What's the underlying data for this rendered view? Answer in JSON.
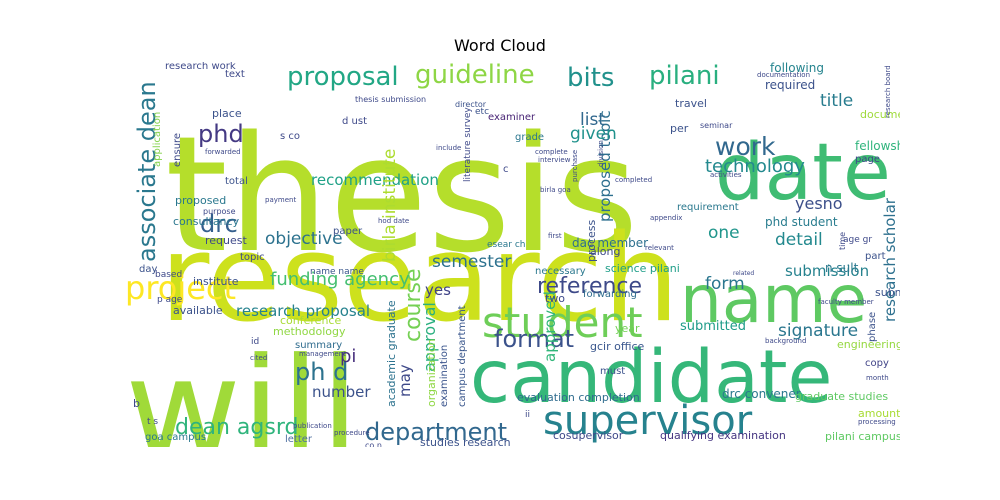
{
  "title": "Word Cloud",
  "words": [
    {
      "text": "thesis",
      "color": "#b5de2b"
    },
    {
      "text": "research",
      "color": "#cde11d"
    },
    {
      "text": "will",
      "color": "#a0da39"
    },
    {
      "text": "date",
      "color": "#3fbc73"
    },
    {
      "text": "name",
      "color": "#5ec962"
    },
    {
      "text": "candidate",
      "color": "#35b779"
    },
    {
      "text": "supervisor",
      "color": "#26828e"
    },
    {
      "text": "student",
      "color": "#6ece58"
    },
    {
      "text": "project",
      "color": "#fde725"
    },
    {
      "text": "proposal",
      "color": "#22a785"
    },
    {
      "text": "guideline",
      "color": "#8ed645"
    },
    {
      "text": "bits",
      "color": "#21918c"
    },
    {
      "text": "pilani",
      "color": "#29af7f"
    },
    {
      "text": "associate dean",
      "color": "#2a788e"
    },
    {
      "text": "phd",
      "color": "#443983"
    },
    {
      "text": "work",
      "color": "#31688e"
    },
    {
      "text": "drc",
      "color": "#355f8d"
    },
    {
      "text": "department",
      "color": "#31688e"
    },
    {
      "text": "dean agsrd",
      "color": "#2fb47c"
    },
    {
      "text": "reference",
      "color": "#3e4a89"
    },
    {
      "text": "format",
      "color": "#3b528b"
    },
    {
      "text": "course",
      "color": "#75d054"
    },
    {
      "text": "ph d",
      "color": "#2c728e"
    },
    {
      "text": "pi",
      "color": "#472f7d"
    },
    {
      "text": "technology",
      "color": "#23898e"
    },
    {
      "text": "funding agency",
      "color": "#44bf70"
    },
    {
      "text": "recommendation",
      "color": "#1fa187"
    },
    {
      "text": "objective",
      "color": "#2c728e"
    },
    {
      "text": "birla institute",
      "color": "#addc30"
    },
    {
      "text": "proposed topic",
      "color": "#2e6f8e"
    },
    {
      "text": "list",
      "color": "#31688e"
    },
    {
      "text": "given",
      "color": "#20928c"
    },
    {
      "text": "title",
      "color": "#287c8e"
    },
    {
      "text": "research scholar",
      "color": "#2d708e"
    },
    {
      "text": "submission",
      "color": "#26828e"
    },
    {
      "text": "signature",
      "color": "#2a768e"
    },
    {
      "text": "detail",
      "color": "#23898e"
    },
    {
      "text": "yesno",
      "color": "#3c4f8a"
    },
    {
      "text": "one",
      "color": "#1f958b"
    },
    {
      "text": "form",
      "color": "#2a768e"
    },
    {
      "text": "semester",
      "color": "#2c718e"
    },
    {
      "text": "approved",
      "color": "#32b67a"
    },
    {
      "text": "approval",
      "color": "#2ab07f"
    },
    {
      "text": "may",
      "color": "#3e4989"
    },
    {
      "text": "number",
      "color": "#3b528b"
    },
    {
      "text": "research proposal",
      "color": "#26828e"
    },
    {
      "text": "yes",
      "color": "#404387"
    },
    {
      "text": "submitted",
      "color": "#1e9c89"
    },
    {
      "text": "dac member",
      "color": "#2d708e"
    },
    {
      "text": "phd student",
      "color": "#287c8e"
    },
    {
      "text": "fellowship",
      "color": "#2fb47c"
    },
    {
      "text": "required",
      "color": "#3b528b"
    },
    {
      "text": "following",
      "color": "#25848e"
    },
    {
      "text": "drc convener",
      "color": "#2a788e"
    },
    {
      "text": "evaluation completion",
      "color": "#2f6c8e"
    },
    {
      "text": "cosupervisor",
      "color": "#3e4989"
    },
    {
      "text": "qualifying examination",
      "color": "#453581"
    },
    {
      "text": "pilani campus",
      "color": "#5ec962"
    },
    {
      "text": "graduate studies",
      "color": "#5ec962"
    },
    {
      "text": "engineering",
      "color": "#95d840"
    },
    {
      "text": "studies research",
      "color": "#3b528b"
    },
    {
      "text": "goa campus",
      "color": "#2a788e"
    },
    {
      "text": "letter",
      "color": "#4e6fa0"
    },
    {
      "text": "methodology",
      "color": "#90d743"
    },
    {
      "text": "conference",
      "color": "#a8db34"
    },
    {
      "text": "summary",
      "color": "#2f6c8e"
    },
    {
      "text": "academic graduate",
      "color": "#2c728e"
    },
    {
      "text": "organization",
      "color": "#8fd744"
    },
    {
      "text": "examination",
      "color": "#3a548c"
    },
    {
      "text": "campus department",
      "color": "#39568c"
    },
    {
      "text": "gcir office",
      "color": "#39568c"
    },
    {
      "text": "must",
      "color": "#3b528b"
    },
    {
      "text": "year",
      "color": "#73d056"
    },
    {
      "text": "two",
      "color": "#3e4a89"
    },
    {
      "text": "forwarding",
      "color": "#2f6c8e"
    },
    {
      "text": "science pilani",
      "color": "#1f9e89"
    },
    {
      "text": "necessary",
      "color": "#2a788e"
    },
    {
      "text": "process",
      "color": "#3b528b"
    },
    {
      "text": "along",
      "color": "#3e4a89"
    },
    {
      "text": "place",
      "color": "#3b528b"
    },
    {
      "text": "ensure",
      "color": "#3e4a89"
    },
    {
      "text": "grade",
      "color": "#2a768e"
    },
    {
      "text": "examiner",
      "color": "#482475"
    },
    {
      "text": "literature survey",
      "color": "#3e4989"
    },
    {
      "text": "application",
      "color": "#83d34b"
    },
    {
      "text": "consultancy",
      "color": "#2a768e"
    },
    {
      "text": "request",
      "color": "#3e4989"
    },
    {
      "text": "topic",
      "color": "#3e4989"
    },
    {
      "text": "proposed",
      "color": "#2a788e"
    },
    {
      "text": "institute",
      "color": "#3b528b"
    },
    {
      "text": "available",
      "color": "#3b528b"
    },
    {
      "text": "requirement",
      "color": "#2a788e"
    },
    {
      "text": "travel",
      "color": "#3b528b"
    },
    {
      "text": "document",
      "color": "#9fda3a"
    },
    {
      "text": "page",
      "color": "#3e4989"
    },
    {
      "text": "submit",
      "color": "#3b528b"
    },
    {
      "text": "amount",
      "color": "#a8db34"
    },
    {
      "text": "copy",
      "color": "#404387"
    },
    {
      "text": "phase",
      "color": "#3b528b"
    },
    {
      "text": "part",
      "color": "#3b528b"
    },
    {
      "text": "day",
      "color": "#3b528b"
    },
    {
      "text": "research work",
      "color": "#3e4989"
    },
    {
      "text": "text",
      "color": "#3e4989"
    },
    {
      "text": "total",
      "color": "#3b528b"
    },
    {
      "text": "paper",
      "color": "#3b528b"
    },
    {
      "text": "purpose",
      "color": "#3e4989"
    },
    {
      "text": "name name",
      "color": "#39568c"
    },
    {
      "text": "d ust",
      "color": "#3e4989"
    },
    {
      "text": "s co",
      "color": "#3e4989"
    },
    {
      "text": "etc",
      "color": "#3b528b"
    },
    {
      "text": "per",
      "color": "#3b528b"
    },
    {
      "text": "c",
      "color": "#3e4989"
    },
    {
      "text": "b",
      "color": "#3e4989"
    },
    {
      "text": "id",
      "color": "#3e4989"
    },
    {
      "text": "ii",
      "color": "#3e4989"
    },
    {
      "text": "t s",
      "color": "#3e4989"
    },
    {
      "text": "co n",
      "color": "#3e4989"
    },
    {
      "text": "n sult",
      "color": "#2a788e"
    },
    {
      "text": "age gr",
      "color": "#3e4989"
    },
    {
      "text": "time",
      "color": "#3e4989"
    },
    {
      "text": "p age",
      "color": "#3e4989"
    },
    {
      "text": "based",
      "color": "#3e4989"
    },
    {
      "text": "esear ch",
      "color": "#2a788e"
    },
    {
      "text": "thesis submission",
      "color": "#3e4989"
    },
    {
      "text": "director",
      "color": "#3b528b"
    },
    {
      "text": "seminar",
      "color": "#3e4989"
    },
    {
      "text": "birla goa",
      "color": "#3e4989"
    },
    {
      "text": "interview",
      "color": "#3e4989"
    },
    {
      "text": "complete",
      "color": "#3e4989"
    },
    {
      "text": "completed",
      "color": "#3e4989"
    },
    {
      "text": "division",
      "color": "#3e4989"
    },
    {
      "text": "purchase",
      "color": "#3e4989"
    },
    {
      "text": "include",
      "color": "#3e4989"
    },
    {
      "text": "forwarded",
      "color": "#3e4989"
    },
    {
      "text": "appendix",
      "color": "#3e4989"
    },
    {
      "text": "activities",
      "color": "#3e4989"
    },
    {
      "text": "first",
      "color": "#3e4989"
    },
    {
      "text": "relevant",
      "color": "#3e4989"
    },
    {
      "text": "faculty member",
      "color": "#3e4989"
    },
    {
      "text": "background",
      "color": "#3e4989"
    },
    {
      "text": "management",
      "color": "#3e4989"
    },
    {
      "text": "publication",
      "color": "#3e4989"
    },
    {
      "text": "cited",
      "color": "#3e4989"
    },
    {
      "text": "procedure",
      "color": "#3e4989"
    },
    {
      "text": "month",
      "color": "#3e4989"
    },
    {
      "text": "processing",
      "color": "#3e4989"
    },
    {
      "text": "related",
      "color": "#3e4989"
    },
    {
      "text": "hod date",
      "color": "#3e4989"
    },
    {
      "text": "payment",
      "color": "#3e4989"
    },
    {
      "text": "documentation",
      "color": "#3e4989"
    },
    {
      "text": "research board",
      "color": "#3e4989"
    }
  ]
}
